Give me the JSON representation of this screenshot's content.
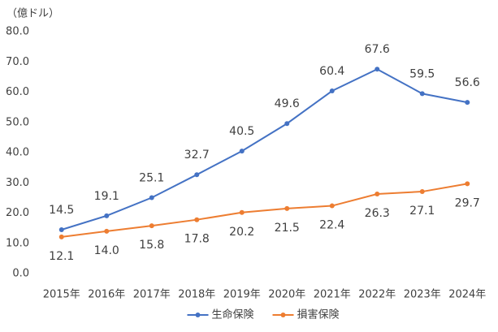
{
  "chart_data": {
    "type": "line",
    "y_axis_label": "（億ドル）",
    "categories": [
      "2015年",
      "2016年",
      "2017年",
      "2018年",
      "2019年",
      "2020年",
      "2021年",
      "2022年",
      "2023年",
      "2024年"
    ],
    "series": [
      {
        "name": "生命保険",
        "color": "#4472c4",
        "values": [
          14.5,
          19.1,
          25.1,
          32.7,
          40.5,
          49.6,
          60.4,
          67.6,
          59.5,
          56.6
        ],
        "value_labels": [
          "14.5",
          "19.1",
          "25.1",
          "32.7",
          "40.5",
          "49.6",
          "60.4",
          "67.6",
          "59.5",
          "56.6"
        ]
      },
      {
        "name": "損害保険",
        "color": "#ed7d31",
        "values": [
          12.1,
          14.0,
          15.8,
          17.8,
          20.2,
          21.5,
          22.4,
          26.3,
          27.1,
          29.7
        ],
        "value_labels": [
          "12.1",
          "14.0",
          "15.8",
          "17.8",
          "20.2",
          "21.5",
          "22.4",
          "26.3",
          "27.1",
          "29.7"
        ]
      }
    ],
    "ylim": [
      0,
      80
    ],
    "yticks": [
      {
        "value": 0,
        "label": "0.0"
      },
      {
        "value": 10,
        "label": "10.0"
      },
      {
        "value": 20,
        "label": "20.0"
      },
      {
        "value": 30,
        "label": "30.0"
      },
      {
        "value": 40,
        "label": "40.0"
      },
      {
        "value": 50,
        "label": "50.0"
      },
      {
        "value": 60,
        "label": "60.0"
      },
      {
        "value": 70,
        "label": "70.0"
      },
      {
        "value": 80,
        "label": "80.0"
      }
    ],
    "grid": false,
    "legend": "bottom"
  }
}
